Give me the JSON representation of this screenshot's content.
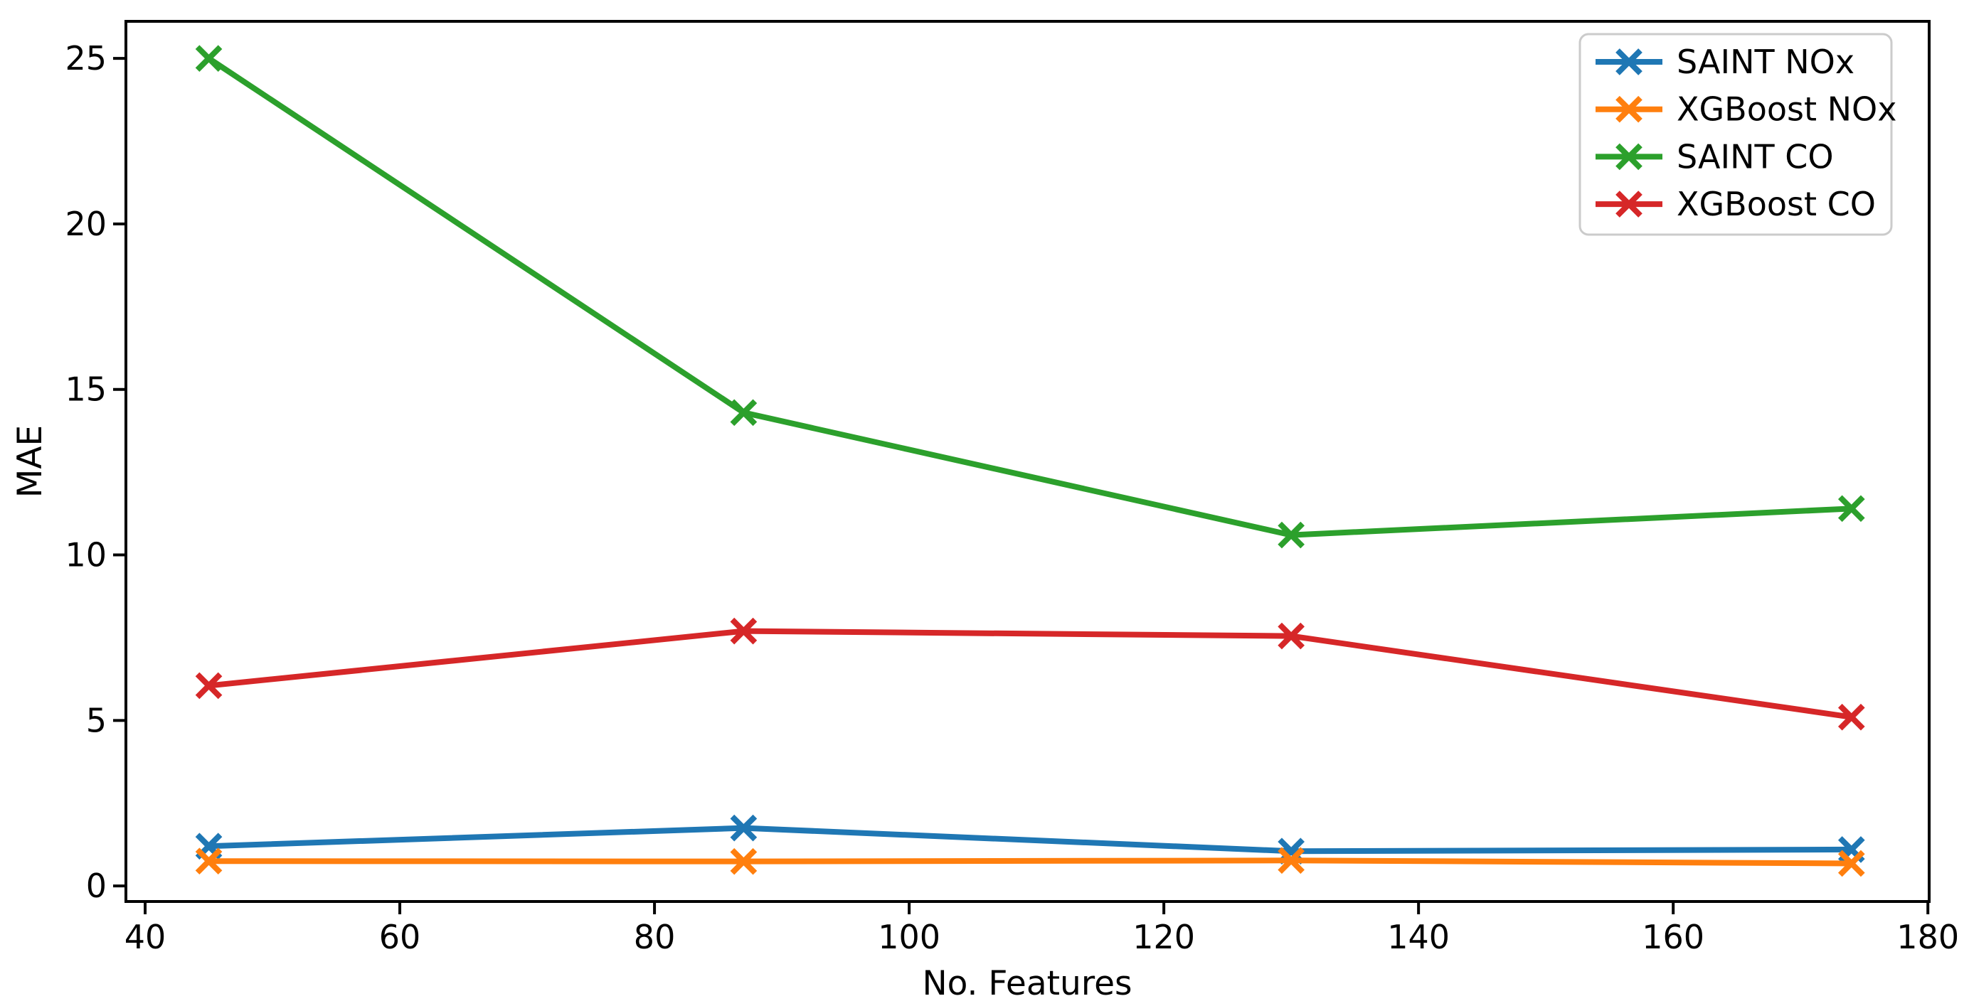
{
  "figure": {
    "xlabel": "No. Features",
    "ylabel": "MAE",
    "background_color": "#ffffff",
    "axis_color": "#000000"
  },
  "legend": {
    "position": "upper right",
    "border_color": "#cbcbcb",
    "items": [
      "SAINT NOx",
      "XGBoost NOx",
      "SAINT CO",
      "XGBoost CO"
    ]
  },
  "chart_data": {
    "type": "line",
    "title": "",
    "xlabel": "No. Features",
    "ylabel": "MAE",
    "marker": "x",
    "grid": false,
    "legend_position": "upper right",
    "x": [
      45,
      87,
      130,
      174
    ],
    "series": [
      {
        "name": "SAINT NOx",
        "color": "#1f77b4",
        "values": [
          1.2,
          1.75,
          1.05,
          1.1
        ]
      },
      {
        "name": "XGBoost NOx",
        "color": "#ff7f0e",
        "values": [
          0.75,
          0.74,
          0.77,
          0.68
        ]
      },
      {
        "name": "SAINT CO",
        "color": "#2ca02c",
        "values": [
          25.0,
          14.3,
          10.6,
          11.4
        ]
      },
      {
        "name": "XGBoost CO",
        "color": "#d62728",
        "values": [
          6.05,
          7.7,
          7.55,
          5.1
        ]
      }
    ],
    "x_ticks": [
      40,
      60,
      80,
      100,
      120,
      140,
      160,
      180
    ],
    "y_ticks": [
      0,
      5,
      10,
      15,
      20,
      25
    ],
    "xlim": [
      38.49,
      180.1
    ],
    "ylim": [
      -0.47,
      26.12
    ]
  }
}
